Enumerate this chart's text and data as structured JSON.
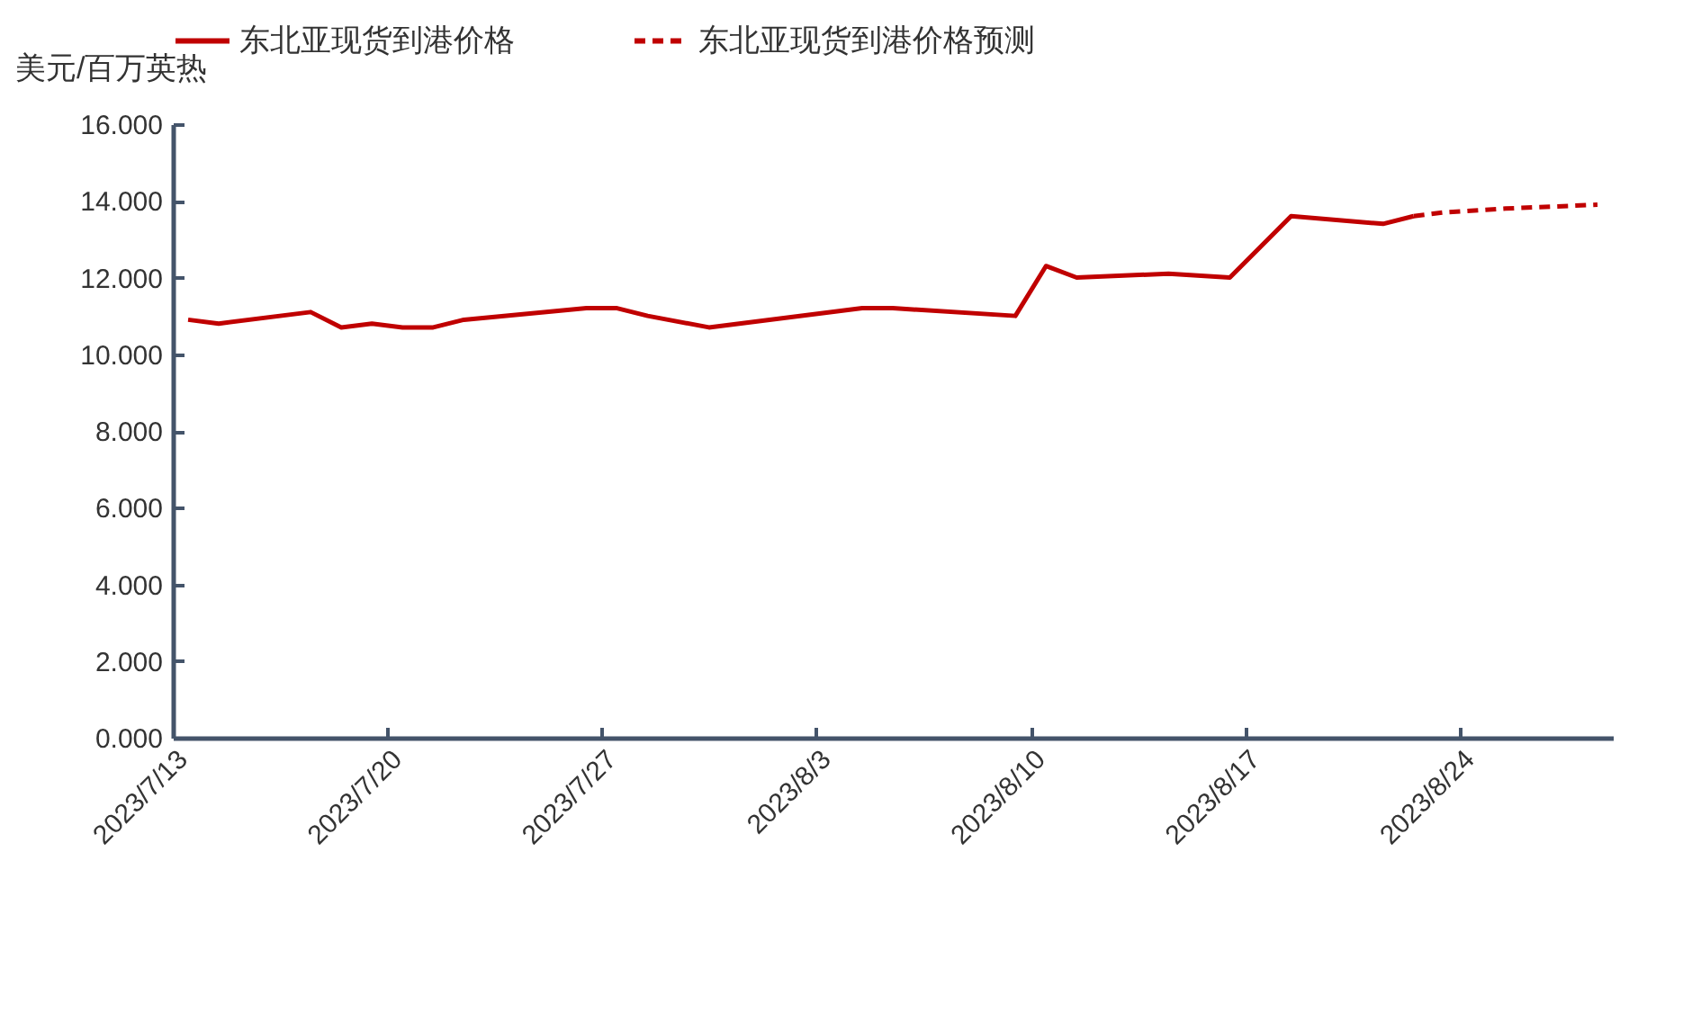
{
  "chart_data": {
    "type": "line",
    "ylabel": "美元/百万英热",
    "legend": "top",
    "grid": false,
    "xlim": [
      "2023-07-13",
      "2023-08-29"
    ],
    "xticks": [
      {
        "value": "2023-07-13",
        "label": "2023/7/13"
      },
      {
        "value": "2023-07-20",
        "label": "2023/7/20"
      },
      {
        "value": "2023-07-27",
        "label": "2023/7/27"
      },
      {
        "value": "2023-08-03",
        "label": "2023/8/3"
      },
      {
        "value": "2023-08-10",
        "label": "2023/8/10"
      },
      {
        "value": "2023-08-17",
        "label": "2023/8/17"
      },
      {
        "value": "2023-08-24",
        "label": "2023/8/24"
      }
    ],
    "ylim": [
      0,
      16
    ],
    "yticks": [
      {
        "value": 0,
        "label": "0.000"
      },
      {
        "value": 2,
        "label": "2.000"
      },
      {
        "value": 4,
        "label": "4.000"
      },
      {
        "value": 6,
        "label": "6.000"
      },
      {
        "value": 8,
        "label": "8.000"
      },
      {
        "value": 10,
        "label": "10.000"
      },
      {
        "value": 12,
        "label": "12.000"
      },
      {
        "value": 14,
        "label": "14.000"
      },
      {
        "value": 16,
        "label": "16.000"
      }
    ],
    "series": [
      {
        "name": "东北亚现货到港价格",
        "color": "#c00000",
        "line_style": "solid",
        "x": [
          "2023-07-13T12:00",
          "2023-07-14T12:00",
          "2023-07-17T12:00",
          "2023-07-18T12:00",
          "2023-07-19T12:00",
          "2023-07-20T12:00",
          "2023-07-21T12:00",
          "2023-07-22T12:00",
          "2023-07-26T12:00",
          "2023-07-27T12:00",
          "2023-07-28T12:00",
          "2023-07-30T12:00",
          "2023-08-04T12:00",
          "2023-08-05T12:00",
          "2023-08-09T12:00",
          "2023-08-10T12:00",
          "2023-08-11T12:00",
          "2023-08-14T12:00",
          "2023-08-16T12:00",
          "2023-08-18T12:00",
          "2023-08-21T12:00",
          "2023-08-22T12:00"
        ],
        "values": [
          10.9,
          10.8,
          11.1,
          10.7,
          10.8,
          10.7,
          10.7,
          10.9,
          11.2,
          11.2,
          11.0,
          10.7,
          11.2,
          11.2,
          11.0,
          12.3,
          12.0,
          12.1,
          12.0,
          13.6,
          13.4,
          13.6
        ]
      },
      {
        "name": "东北亚现货到港价格预测",
        "color": "#c00000",
        "line_style": "dashed",
        "x": [
          "2023-08-22T12:00",
          "2023-08-23T12:00",
          "2023-08-25T12:00",
          "2023-08-28T12:00"
        ],
        "values": [
          13.6,
          13.7,
          13.8,
          13.9
        ]
      }
    ]
  }
}
